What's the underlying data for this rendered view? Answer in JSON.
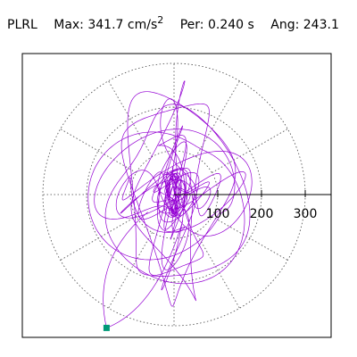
{
  "header": {
    "station": "PLRL",
    "max_label": "Max:",
    "max_value": "341.7",
    "max_unit": "cm/s",
    "max_unit_exp": "2",
    "period_label": "Per:",
    "period_value": "0.240 s",
    "angle_label": "Ang:",
    "angle_value": "243.1"
  },
  "chart_data": {
    "type": "polar-orbit",
    "radial_ticks": [
      100,
      200,
      300
    ],
    "radial_tick_labels": [
      "100",
      "200",
      "300"
    ],
    "radial_max": 350,
    "grid_rings": [
      100,
      200,
      300
    ],
    "grid_spokes_deg": [
      0,
      30,
      60,
      90,
      120,
      150,
      180,
      210,
      240,
      270,
      300,
      330
    ],
    "max_amplitude": 341.7,
    "max_angle_deg": 243.1,
    "peak_point": {
      "x": -154.3,
      "y": -304.9
    },
    "trace_color": "#9400d3",
    "marker_color": "#009977",
    "grid": true
  }
}
